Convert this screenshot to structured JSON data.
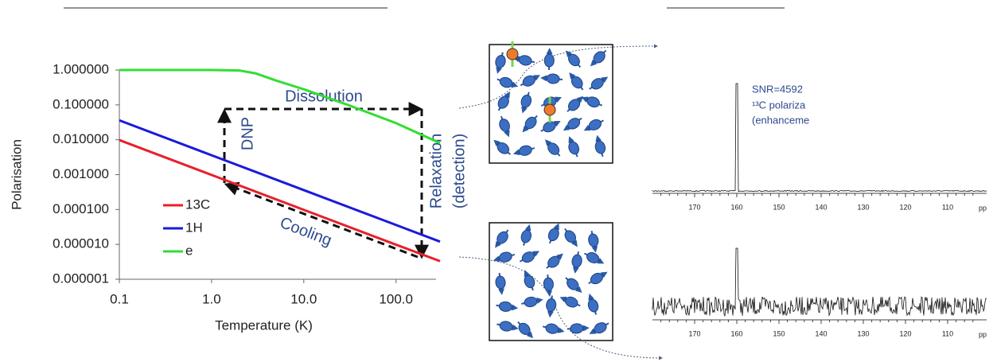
{
  "chart_data": {
    "type": "line",
    "x_label": "Temperature (K)",
    "y_label": "Polarisation",
    "x_log": true,
    "y_log": true,
    "xlim": [
      0.1,
      300
    ],
    "ylim": [
      1e-06,
      1
    ],
    "xticks": [
      0.1,
      {
        "value": 1,
        "label": "1.0"
      },
      {
        "value": 10,
        "label": "10.0"
      },
      {
        "value": 100,
        "label": "100.0"
      }
    ],
    "yticks": [
      {
        "value": 1,
        "label": "1.000000"
      },
      {
        "value": 0.1,
        "label": "0.100000"
      },
      {
        "value": 0.01,
        "label": "0.010000"
      },
      {
        "value": 0.001,
        "label": "0.001000"
      },
      {
        "value": 0.0001,
        "label": "0.000100"
      },
      {
        "value": 1e-05,
        "label": "0.000010"
      },
      {
        "value": 1e-06,
        "label": "0.000001"
      }
    ],
    "legend": "left",
    "series": [
      {
        "name": "13C",
        "color": "#e8202a",
        "x": [
          0.1,
          1,
          10,
          100,
          300
        ],
        "values": [
          0.0098,
          0.00098,
          9.8e-05,
          9.8e-06,
          3.3e-06
        ]
      },
      {
        "name": "1H",
        "color": "#1a1adb",
        "x": [
          0.1,
          1,
          10,
          100,
          300
        ],
        "values": [
          0.036,
          0.0036,
          0.00036,
          3.6e-05,
          1.2e-05
        ]
      },
      {
        "name": "e",
        "color": "#33dd33",
        "x": [
          0.1,
          1,
          2,
          3,
          5,
          10,
          30,
          100,
          300
        ],
        "values": [
          1,
          1,
          0.97,
          0.8,
          0.5,
          0.28,
          0.1,
          0.03,
          0.008
        ]
      }
    ],
    "annotations": [
      "Dissolution",
      "DNP",
      "Relaxation",
      "(detection)",
      "Cooling"
    ]
  },
  "spectra": [
    {
      "labels": [
        "SNR=4592",
        "¹³C polariza",
        "(enhanceme"
      ],
      "ppm_ticks": [
        170,
        160,
        150,
        140,
        130,
        120,
        110
      ],
      "ppm_unit": "pp"
    },
    {
      "ppm_ticks": [
        170,
        160,
        150,
        140,
        130,
        120,
        110
      ],
      "ppm_unit": "pp"
    }
  ]
}
